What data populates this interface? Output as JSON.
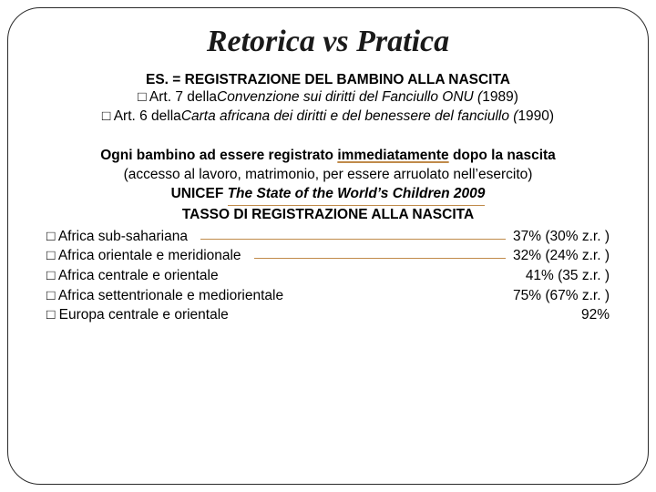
{
  "title": "Retorica vs Pratica",
  "heading": "ES. = REGISTRAZIONE DEL BAMBINO ALLA NASCITA",
  "art1_prefix": "□ Art. 7 della ",
  "art1_italic": "Convenzione sui diritti del Fanciullo  ONU (",
  "art1_suffix": "1989)",
  "art2_prefix": "□ Art. 6 della ",
  "art2_italic": "Carta africana dei diritti e del benessere del fanciullo (",
  "art2_suffix": "1990)",
  "mid_line1_a": "Ogni bambino ad essere registrato ",
  "mid_line1_b": "immediatamente",
  "mid_line1_c": " dopo la nascita",
  "mid_line2": "(accesso al lavoro, matrimonio, per essere arruolato nell’esercito)",
  "unicef_a": "UNICEF ",
  "unicef_b": "The State of the World’s Children 2009",
  "tasso_heading": "TASSO DI REGISTRAZIONE ALLA NASCITA",
  "rates": [
    {
      "label": "□ Africa sub-sahariana",
      "value": "37% (30% z.r. )",
      "lined": true
    },
    {
      "label": "□ Africa orientale e meridionale",
      "value": "32% (24% z.r. )",
      "lined": true
    },
    {
      "label": "□ Africa centrale e orientale",
      "value": "41% (35 z.r. )",
      "lined": false
    },
    {
      "label": "□ Africa settentrionale e mediorientale",
      "value": "75% (67% z.r. )",
      "lined": false
    },
    {
      "label": "□ Europa centrale e orientale",
      "value": "92%",
      "lined": false
    }
  ],
  "colors": {
    "underline": "#c08a4a",
    "text": "#000000",
    "frame": "#2a2a2a"
  }
}
